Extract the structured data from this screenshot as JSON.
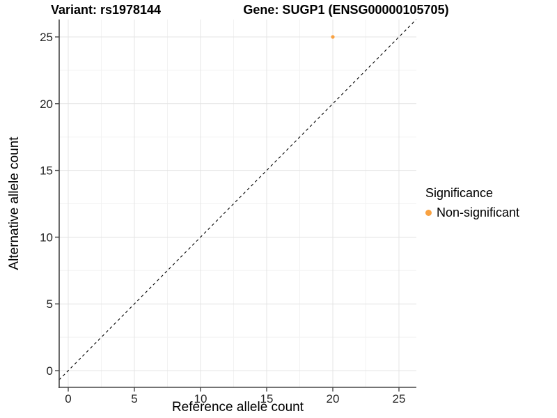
{
  "chart_data": {
    "type": "scatter",
    "title_left": "Variant: rs1978144",
    "title_right": "Gene: SUGP1 (ENSG00000105705)",
    "xlabel": "Reference allele count",
    "ylabel": "Alternative allele count",
    "xlim": [
      -0.7,
      26.3
    ],
    "ylim": [
      -1.25,
      26.3
    ],
    "x_ticks": [
      0,
      5,
      10,
      15,
      20,
      25
    ],
    "y_ticks": [
      0,
      5,
      10,
      15,
      20,
      25
    ],
    "x_minor_ticks": [
      2.5,
      7.5,
      12.5,
      17.5,
      22.5
    ],
    "y_minor_ticks": [
      2.5,
      7.5,
      12.5,
      17.5,
      22.5
    ],
    "grid": "on",
    "series": [
      {
        "name": "Non-significant",
        "color": "#F9A242",
        "points": [
          {
            "x": 20,
            "y": 25
          }
        ]
      }
    ],
    "reference_line": {
      "kind": "identity y=x",
      "style": "dashed",
      "color": "#000000"
    },
    "legend": {
      "title": "Significance",
      "position": "right",
      "items": [
        {
          "label": "Non-significant",
          "color": "#F9A242"
        }
      ]
    }
  }
}
